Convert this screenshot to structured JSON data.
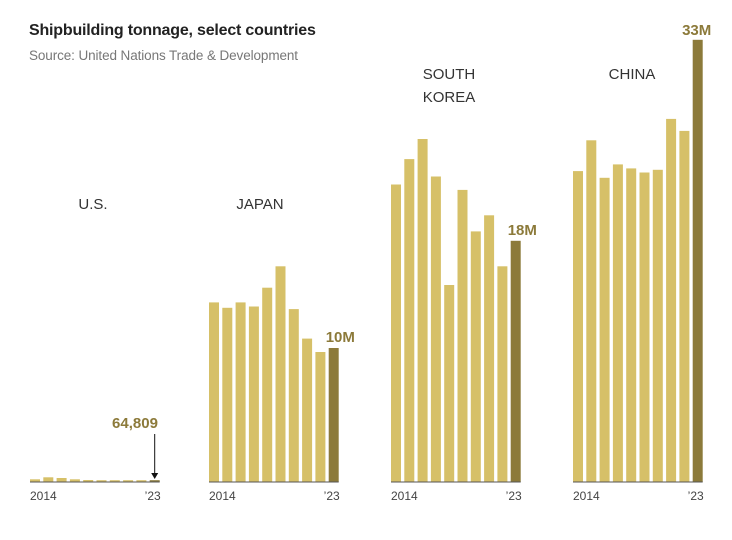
{
  "title": "Shipbuilding tonnage, select countries",
  "source": "Source: United Nations Trade & Development",
  "colors": {
    "bar": "#d6c068",
    "highlight": "#8c7a3a",
    "baseline": "#555555",
    "label": "#333333"
  },
  "chart_data": [
    {
      "type": "bar",
      "panel": "U.S.",
      "categories": [
        "2014",
        "2015",
        "2016",
        "2017",
        "2018",
        "2019",
        "2020",
        "2021",
        "2022",
        "2023"
      ],
      "values": [
        0.2,
        0.35,
        0.3,
        0.2,
        0.15,
        0.1,
        0.05,
        0.05,
        0.04,
        0.064809
      ],
      "unit": "million tonnes",
      "start_label": "2014",
      "end_label": "’23",
      "value_label": "64,809",
      "ylim": [
        0,
        33.5
      ]
    },
    {
      "type": "bar",
      "panel": "JAPAN",
      "categories": [
        "2014",
        "2015",
        "2016",
        "2017",
        "2018",
        "2019",
        "2020",
        "2021",
        "2022",
        "2023"
      ],
      "values": [
        13.4,
        13.0,
        13.4,
        13.1,
        14.5,
        16.1,
        12.9,
        10.7,
        9.7,
        10.0
      ],
      "unit": "million tonnes",
      "start_label": "2014",
      "end_label": "’23",
      "value_label": "10M",
      "ylim": [
        0,
        33.5
      ]
    },
    {
      "type": "bar",
      "panel_lines": [
        "SOUTH",
        "KOREA"
      ],
      "categories": [
        "2014",
        "2015",
        "2016",
        "2017",
        "2018",
        "2019",
        "2020",
        "2021",
        "2022",
        "2023"
      ],
      "values": [
        22.2,
        24.1,
        25.6,
        22.8,
        14.7,
        21.8,
        18.7,
        19.9,
        16.1,
        18.0
      ],
      "unit": "million tonnes",
      "start_label": "2014",
      "end_label": "’23",
      "value_label": "18M",
      "ylim": [
        0,
        33.5
      ]
    },
    {
      "type": "bar",
      "panel": "CHINA",
      "categories": [
        "2014",
        "2015",
        "2016",
        "2017",
        "2018",
        "2019",
        "2020",
        "2021",
        "2022",
        "2023"
      ],
      "values": [
        23.2,
        25.5,
        22.7,
        23.7,
        23.4,
        23.1,
        23.3,
        27.1,
        26.2,
        33.0
      ],
      "unit": "million tonnes",
      "start_label": "2014",
      "end_label": "’23",
      "value_label": "33M",
      "ylim": [
        0,
        33.5
      ]
    }
  ]
}
